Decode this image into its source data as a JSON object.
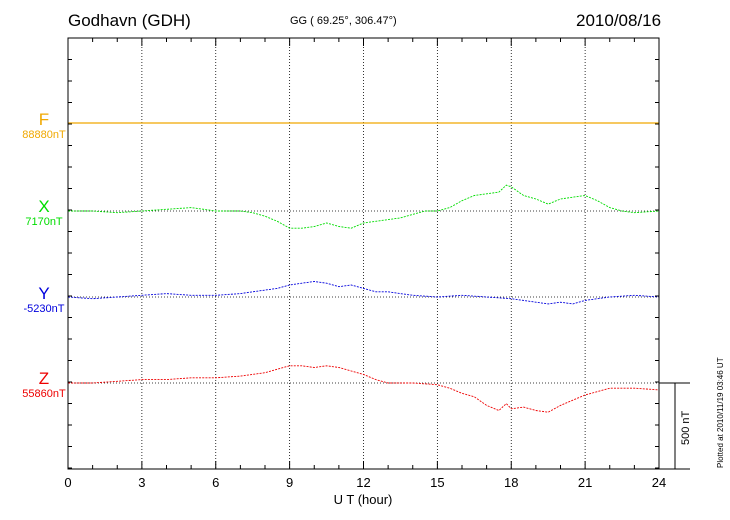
{
  "header": {
    "station": "Godhavn (GDH)",
    "coords": "GG ( 69.25°, 306.47°)",
    "date": "2010/08/16"
  },
  "side_text": {
    "plotted": "Plotted at 2010/11/19 03:46 UT",
    "scale": "500 nT"
  },
  "colors": {
    "F": "#f0a800",
    "X": "#00dd00",
    "Y": "#0000dd",
    "Z": "#ee0000"
  },
  "chart_data": {
    "type": "line",
    "title": "",
    "xlabel": "U T (hour)",
    "ylabel": "",
    "x_ticks": [
      "0",
      "3",
      "6",
      "9",
      "12",
      "15",
      "18",
      "21",
      "24"
    ],
    "xlim": [
      0,
      24
    ],
    "grid": true,
    "scale_bar_nT": 500,
    "series": [
      {
        "name": "F",
        "baseline": "88880nT",
        "x": [
          0,
          24
        ],
        "values": [
          88880,
          88880
        ]
      },
      {
        "name": "X",
        "baseline": "7170nT",
        "x": [
          0,
          1,
          2,
          3,
          4,
          5,
          6,
          7,
          7.5,
          8,
          8.5,
          9,
          9.5,
          10,
          10.5,
          11,
          11.5,
          12,
          12.5,
          13,
          13.5,
          14,
          14.5,
          15,
          15.5,
          16,
          16.5,
          17,
          17.5,
          17.8,
          18,
          18.5,
          19,
          19.5,
          20,
          20.5,
          21,
          21.5,
          22,
          22.5,
          23,
          24
        ],
        "values": [
          7170,
          7170,
          7160,
          7170,
          7180,
          7190,
          7170,
          7170,
          7160,
          7140,
          7110,
          7070,
          7070,
          7080,
          7100,
          7080,
          7070,
          7100,
          7110,
          7120,
          7130,
          7150,
          7170,
          7170,
          7190,
          7230,
          7260,
          7270,
          7280,
          7320,
          7310,
          7260,
          7240,
          7210,
          7240,
          7250,
          7260,
          7230,
          7190,
          7170,
          7160,
          7170
        ]
      },
      {
        "name": "Y",
        "baseline": "-5230nT",
        "x": [
          0,
          1,
          2,
          3,
          4,
          5,
          6,
          7,
          7.5,
          8,
          8.5,
          9,
          9.5,
          10,
          10.5,
          11,
          11.5,
          12,
          12.5,
          13,
          13.5,
          14,
          15,
          16,
          17,
          18,
          19,
          19.5,
          20,
          20.5,
          21,
          22,
          23,
          24
        ],
        "values": [
          -5230,
          -5240,
          -5230,
          -5220,
          -5210,
          -5220,
          -5220,
          -5210,
          -5200,
          -5190,
          -5180,
          -5160,
          -5150,
          -5140,
          -5150,
          -5170,
          -5160,
          -5180,
          -5200,
          -5200,
          -5210,
          -5220,
          -5230,
          -5220,
          -5230,
          -5240,
          -5260,
          -5270,
          -5260,
          -5270,
          -5250,
          -5230,
          -5220,
          -5230
        ]
      },
      {
        "name": "Z",
        "baseline": "55860nT",
        "x": [
          0,
          1,
          2,
          3,
          4,
          5,
          6,
          7,
          7.5,
          8,
          8.5,
          9,
          9.5,
          10,
          10.5,
          11,
          11.5,
          12,
          12.5,
          13,
          14,
          15,
          15.5,
          16,
          16.5,
          17,
          17.5,
          17.8,
          18,
          18.5,
          19,
          19.5,
          20,
          20.5,
          21,
          21.5,
          22,
          23,
          24
        ],
        "values": [
          55860,
          55860,
          55870,
          55880,
          55880,
          55890,
          55890,
          55900,
          55910,
          55920,
          55940,
          55960,
          55960,
          55950,
          55960,
          55950,
          55930,
          55910,
          55880,
          55860,
          55860,
          55850,
          55830,
          55800,
          55780,
          55730,
          55700,
          55740,
          55710,
          55720,
          55700,
          55690,
          55730,
          55760,
          55790,
          55810,
          55830,
          55830,
          55820
        ]
      }
    ]
  }
}
